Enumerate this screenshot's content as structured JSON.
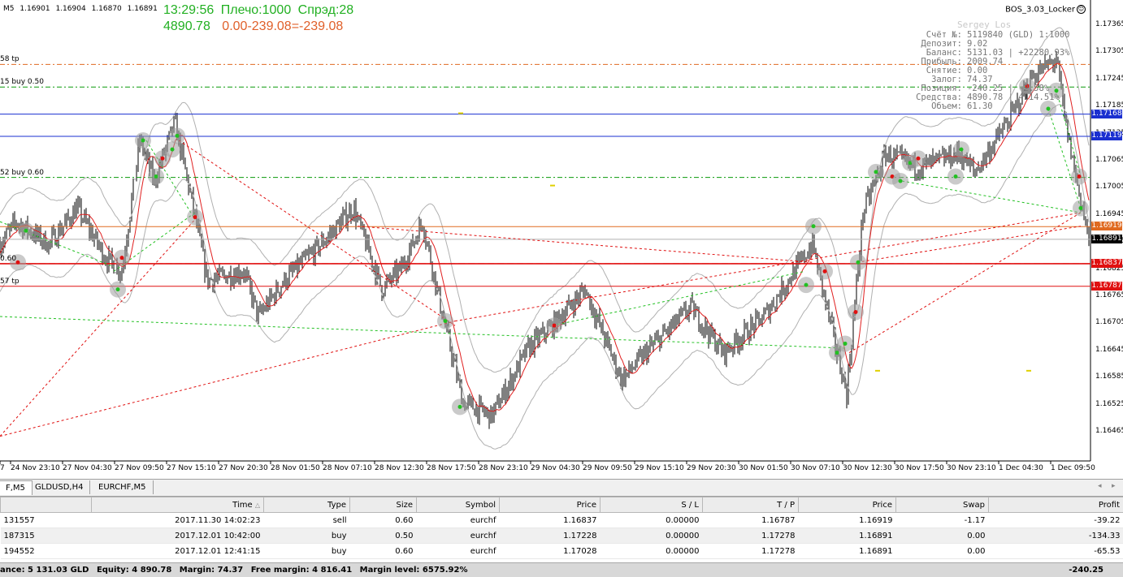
{
  "header": {
    "symbol_prefix": "M5",
    "ohlc": [
      "1.16901",
      "1.16904",
      "1.16870",
      "1.16891"
    ],
    "time": "13:29:56",
    "leverage_label": "Плечо:1000",
    "spread_label": "Спрэд:28",
    "equity": "4890.78",
    "pl_text": "0.00-239.08=-239.08",
    "ea_name": "BOS_3.03_Locker",
    "ea_icon": "smiley-icon"
  },
  "account": {
    "owner": "Sergey Los",
    "rows": [
      {
        "k": "Счёт №:",
        "v": "5119840 (GLD) 1:1000"
      },
      {
        "k": "Депозит:",
        "v": "9.02"
      },
      {
        "k": "Баланс:",
        "v": "5131.03 | +22280.93%"
      },
      {
        "k": "Прибыль:",
        "v": "2009.74"
      },
      {
        "k": "Снятие:",
        "v": "0.00"
      },
      {
        "k": "Залог:",
        "v": "74.37"
      },
      {
        "k": "Позиция:",
        "v": "-240.25 | -2.58%"
      },
      {
        "k": "Средства:",
        "v": "4890.78 | 4114.51%"
      },
      {
        "k": "Объем:",
        "v": "61.30"
      }
    ]
  },
  "chart": {
    "level_labels": [
      {
        "text": "58 tp",
        "price": 1.17278
      },
      {
        "text": "15 buy 0.50",
        "price": 1.17228
      },
      {
        "text": "52 buy 0.60",
        "price": 1.17028
      },
      {
        "text": "0.60",
        "price": 1.16837
      },
      {
        "text": "57 tp",
        "price": 1.16787
      }
    ],
    "price_axis": [
      "1.17365",
      "1.17305",
      "1.17245",
      "1.17185",
      "1.17125",
      "1.17065",
      "1.17005",
      "1.16945",
      "1.16885",
      "1.16825",
      "1.16765",
      "1.16705",
      "1.16645",
      "1.16585",
      "1.16525",
      "1.16465"
    ],
    "price_tags": [
      {
        "text": "1.17168",
        "price": 1.17168,
        "color": "#1a2fd0"
      },
      {
        "text": "1.17119",
        "price": 1.17119,
        "color": "#1a2fd0"
      },
      {
        "text": "1.16919",
        "price": 1.16919,
        "color": "#e06a20"
      },
      {
        "text": "1.16891",
        "price": 1.16891,
        "color": "#000000"
      },
      {
        "text": "1.16837",
        "price": 1.16837,
        "color": "#e01010"
      },
      {
        "text": "1.16787",
        "price": 1.16787,
        "color": "#e01010"
      }
    ],
    "time_axis": [
      "7",
      "24 Nov 23:10",
      "27 Nov 04:30",
      "27 Nov 09:50",
      "27 Nov 15:10",
      "27 Nov 20:30",
      "28 Nov 01:50",
      "28 Nov 07:10",
      "28 Nov 12:30",
      "28 Nov 17:50",
      "28 Nov 23:10",
      "29 Nov 04:30",
      "29 Nov 09:50",
      "29 Nov 15:10",
      "29 Nov 20:30",
      "30 Nov 01:50",
      "30 Nov 07:10",
      "30 Nov 12:30",
      "30 Nov 17:50",
      "30 Nov 23:10",
      "1 Dec 04:30",
      "1 Dec 09:50"
    ],
    "colors": {
      "bid_line": "#1a2fd0",
      "sell_line": "#e01010",
      "buy_level": "#0a9a0a",
      "ma": "#e02020",
      "bands": "#b0b0b0"
    }
  },
  "tabs": [
    {
      "label": "F,M5",
      "active": true
    },
    {
      "label": "GLDUSD,H4",
      "active": false
    },
    {
      "label": "EURCHF,M5",
      "active": false
    }
  ],
  "table": {
    "columns": [
      "",
      "Time",
      "Type",
      "Size",
      "Symbol",
      "Price",
      "S / L",
      "T / P",
      "Price",
      "Swap",
      "Profit"
    ],
    "sort_icon": "sort-up-icon",
    "rows": [
      {
        "order": "131557",
        "time": "2017.11.30 14:02:23",
        "type": "sell",
        "size": "0.60",
        "symbol": "eurchf",
        "price": "1.16837",
        "sl": "0.00000",
        "tp": "1.16787",
        "cur": "1.16919",
        "swap": "-1.17",
        "profit": "-39.22"
      },
      {
        "order": "187315",
        "time": "2017.12.01 10:42:00",
        "type": "buy",
        "size": "0.50",
        "symbol": "eurchf",
        "price": "1.17228",
        "sl": "0.00000",
        "tp": "1.17278",
        "cur": "1.16891",
        "swap": "0.00",
        "profit": "-134.33"
      },
      {
        "order": "194552",
        "time": "2017.12.01 12:41:15",
        "type": "buy",
        "size": "0.60",
        "symbol": "eurchf",
        "price": "1.17028",
        "sl": "0.00000",
        "tp": "1.17278",
        "cur": "1.16891",
        "swap": "0.00",
        "profit": "-65.53"
      }
    ]
  },
  "status": {
    "balance": "ance: 5 131.03 GLD",
    "equity": "Equity: 4 890.78",
    "margin": "Margin: 74.37",
    "free_margin": "Free margin: 4 816.41",
    "margin_level": "Margin level: 6575.92%",
    "total": "-240.25"
  }
}
